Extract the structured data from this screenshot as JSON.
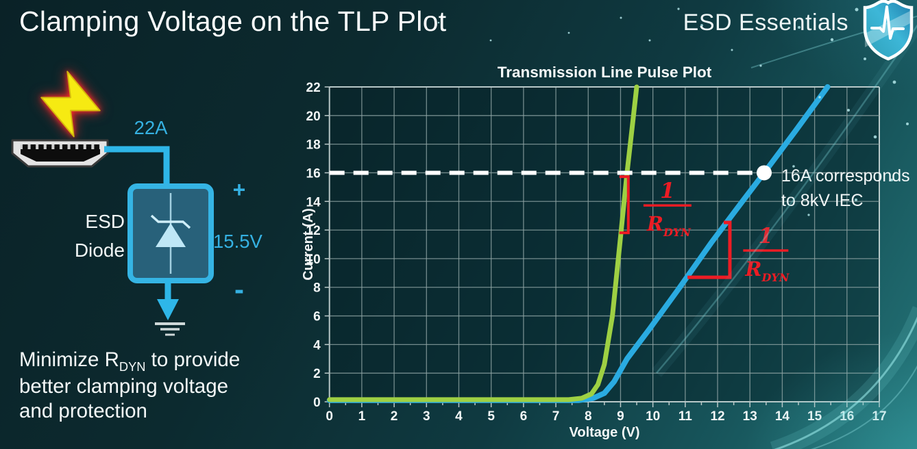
{
  "header": {
    "title": "Clamping Voltage on the TLP Plot",
    "brand": "ESD Essentials"
  },
  "circuit": {
    "surge_current": "22A",
    "plus": "+",
    "clamp_voltage": "15.5V",
    "minus": "-",
    "device_line1": "ESD",
    "device_line2": "Diode"
  },
  "note": {
    "line1_prefix": "Minimize R",
    "line1_sub": "DYN",
    "line1_suffix": " to provide",
    "line2": "better clamping voltage",
    "line3": "and protection"
  },
  "chart_data": {
    "type": "line",
    "title": "Transmission Line Pulse Plot",
    "xlabel": "Voltage (V)",
    "ylabel": "Current (A)",
    "xlim": [
      0,
      17
    ],
    "ylim": [
      0,
      22
    ],
    "x_ticks": [
      0,
      1,
      2,
      3,
      4,
      5,
      6,
      7,
      8,
      9,
      10,
      11,
      12,
      13,
      14,
      15,
      16,
      17
    ],
    "y_ticks": [
      0,
      2,
      4,
      6,
      8,
      10,
      12,
      14,
      16,
      18,
      20,
      22
    ],
    "grid": true,
    "legend": "none",
    "series": [
      {
        "id": "blue-curve",
        "color": "#2aabe1",
        "width": 8,
        "points": [
          [
            0,
            0.1
          ],
          [
            7.7,
            0.1
          ],
          [
            8.15,
            0.25
          ],
          [
            8.5,
            0.6
          ],
          [
            8.8,
            1.4
          ],
          [
            9.2,
            3.0
          ],
          [
            9.9,
            5.1
          ],
          [
            10.8,
            7.9
          ],
          [
            11.8,
            11.1
          ],
          [
            12.8,
            14.1
          ],
          [
            13.44,
            16
          ],
          [
            14.4,
            18.9
          ],
          [
            15.4,
            22
          ]
        ]
      },
      {
        "id": "green-curve",
        "color": "#9ed043",
        "width": 7,
        "points": [
          [
            0,
            0.15
          ],
          [
            7.4,
            0.15
          ],
          [
            7.8,
            0.25
          ],
          [
            8.1,
            0.55
          ],
          [
            8.3,
            1.2
          ],
          [
            8.5,
            2.6
          ],
          [
            8.75,
            6
          ],
          [
            9.0,
            11.5
          ],
          [
            9.2,
            16
          ],
          [
            9.35,
            19
          ],
          [
            9.5,
            22
          ]
        ]
      }
    ],
    "annotations": {
      "dashed_line": {
        "y": 16,
        "x_from": 0,
        "x_to": 13.44,
        "color": "#ffffff"
      },
      "marker": {
        "x": 13.44,
        "y": 16,
        "color": "#ffffff",
        "label_line1": "16A corresponds",
        "label_line2": "to 8kV IEC"
      },
      "slope_left": {
        "x": 9.24,
        "y_top": 15.73,
        "y_bot": 11.81,
        "frac_x": 10.45,
        "frac_bar_y": 13.72,
        "num": "1",
        "den": "R",
        "den_sub": "DYN",
        "color": "#ed1c24"
      },
      "slope_right": {
        "x": 12.38,
        "y_top": 12.53,
        "y_bot": 8.7,
        "x_left": 11.07,
        "frac_x": 13.49,
        "frac_bar_y": 10.57,
        "num": "1",
        "den": "R",
        "den_sub": "DYN",
        "color": "#ed1c24"
      }
    }
  },
  "decor": {
    "accent_cyan": "#35b1e2",
    "accent_red": "#ed1c24",
    "accent_green": "#9ed043",
    "accent_blue": "#2aabe1",
    "particles": [
      [
        1250,
        14,
        2.5
      ],
      [
        1166,
        40,
        2
      ],
      [
        1214,
        58,
        2.2
      ],
      [
        1262,
        86,
        2
      ],
      [
        1305,
        120,
        2.4
      ],
      [
        1196,
        142,
        1.8
      ],
      [
        1238,
        161,
        2
      ],
      [
        1277,
        200,
        2.3
      ],
      [
        1158,
        243,
        1.8
      ],
      [
        1301,
        263,
        2
      ],
      [
        1249,
        292,
        2
      ],
      [
        1180,
        314,
        1.6
      ],
      [
        1324,
        181,
        2
      ],
      [
        1110,
        96,
        1.6
      ],
      [
        1024,
        37,
        1.9
      ],
      [
        990,
        13,
        1.6
      ],
      [
        948,
        59,
        1.5
      ],
      [
        1068,
        73,
        1.5
      ],
      [
        906,
        26,
        1.5
      ],
      [
        716,
        59,
        1.4
      ],
      [
        640,
        33,
        1.3
      ],
      [
        830,
        48,
        1.4
      ]
    ]
  }
}
